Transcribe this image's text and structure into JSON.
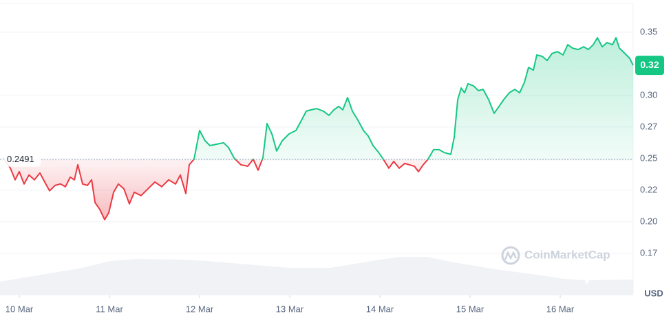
{
  "chart_data": {
    "type": "line",
    "x": [
      -0.176,
      -0.099,
      -0.046,
      0,
      0.053,
      0.107,
      0.168,
      0.229,
      0.282,
      0.336,
      0.397,
      0.458,
      0.511,
      0.565,
      0.611,
      0.649,
      0.702,
      0.756,
      0.802,
      0.84,
      0.893,
      0.947,
      0.992,
      1.046,
      1.099,
      1.16,
      1.221,
      1.275,
      1.351,
      1.427,
      1.504,
      1.58,
      1.656,
      1.733,
      1.786,
      1.847,
      1.885,
      1.939,
      2.0,
      2.061,
      2.115,
      2.191,
      2.267,
      2.321,
      2.382,
      2.458,
      2.534,
      2.595,
      2.649,
      2.702,
      2.748,
      2.802,
      2.855,
      2.916,
      2.992,
      3.069,
      3.13,
      3.183,
      3.237,
      3.298,
      3.374,
      3.435,
      3.489,
      3.542,
      3.588,
      3.641,
      3.695,
      3.756,
      3.817,
      3.87,
      3.924,
      3.985,
      4.038,
      4.099,
      4.153,
      4.214,
      4.275,
      4.328,
      4.382,
      4.427,
      4.481,
      4.534,
      4.595,
      4.656,
      4.71,
      4.786,
      4.824,
      4.863,
      4.901,
      4.939,
      4.977,
      5.038,
      5.092,
      5.145,
      5.206,
      5.267,
      5.321,
      5.374,
      5.435,
      5.496,
      5.55,
      5.603,
      5.649,
      5.702,
      5.74,
      5.802,
      5.855,
      5.908,
      5.969,
      6.031,
      6.084,
      6.137,
      6.198,
      6.26,
      6.313,
      6.366,
      6.412,
      6.466,
      6.519,
      6.58,
      6.618,
      6.656,
      6.718,
      6.771,
      6.809
    ],
    "series": [
      {
        "name": "Price",
        "up_color": "#16c784",
        "down_color": "#ea3943",
        "values": [
          0.2505,
          0.2424,
          0.2332,
          0.2397,
          0.2299,
          0.237,
          0.2332,
          0.2386,
          0.2315,
          0.2245,
          0.2288,
          0.2299,
          0.2277,
          0.2353,
          0.2332,
          0.2451,
          0.2299,
          0.2288,
          0.2332,
          0.2152,
          0.2098,
          0.2017,
          0.2071,
          0.2234,
          0.2299,
          0.2261,
          0.2142,
          0.2234,
          0.2207,
          0.2261,
          0.2315,
          0.2277,
          0.2332,
          0.2299,
          0.237,
          0.2223,
          0.2451,
          0.2495,
          0.2723,
          0.2641,
          0.2603,
          0.2614,
          0.2625,
          0.2587,
          0.2505,
          0.2451,
          0.244,
          0.2495,
          0.2408,
          0.2505,
          0.2777,
          0.2695,
          0.256,
          0.2641,
          0.2695,
          0.2723,
          0.2804,
          0.2875,
          0.2886,
          0.2896,
          0.2875,
          0.2842,
          0.2886,
          0.2913,
          0.2886,
          0.2983,
          0.2875,
          0.2804,
          0.2723,
          0.2679,
          0.2603,
          0.2549,
          0.2495,
          0.2424,
          0.2478,
          0.2424,
          0.2462,
          0.2451,
          0.244,
          0.2397,
          0.2451,
          0.2495,
          0.2571,
          0.2571,
          0.2549,
          0.2533,
          0.2668,
          0.2967,
          0.3059,
          0.3021,
          0.3092,
          0.3076,
          0.3038,
          0.3048,
          0.2967,
          0.2858,
          0.2913,
          0.2967,
          0.3021,
          0.3048,
          0.3021,
          0.3103,
          0.3222,
          0.32,
          0.332,
          0.3309,
          0.3276,
          0.3331,
          0.3347,
          0.332,
          0.3401,
          0.3374,
          0.3363,
          0.3385,
          0.3363,
          0.3401,
          0.3456,
          0.3385,
          0.3418,
          0.3401,
          0.3456,
          0.3374,
          0.3331,
          0.3293,
          0.3238
        ]
      }
    ],
    "baseline": 0.2491,
    "current_price_label": "0.32",
    "xlim": [
      -0.214,
      6.809
    ],
    "xticks": [
      {
        "value": 0,
        "label": "10 Mar"
      },
      {
        "value": 1,
        "label": "11 Mar"
      },
      {
        "value": 2,
        "label": "12 Mar"
      },
      {
        "value": 3,
        "label": "13 Mar"
      },
      {
        "value": 4,
        "label": "14 Mar"
      },
      {
        "value": 5,
        "label": "15 Mar"
      },
      {
        "value": 6,
        "label": "16 Mar"
      }
    ],
    "ylim": [
      0.1418,
      0.3755
    ],
    "yticks": [
      {
        "value": 0.175,
        "label": "0.17"
      },
      {
        "value": 0.2,
        "label": "0.20"
      },
      {
        "value": 0.225,
        "label": "0.22"
      },
      {
        "value": 0.25,
        "label": "0.25"
      },
      {
        "value": 0.275,
        "label": "0.27"
      },
      {
        "value": 0.3,
        "label": "0.30"
      },
      {
        "value": 0.35,
        "label": "0.35"
      }
    ],
    "y_axis_label": "USD",
    "watermark": "CoinMarketCap",
    "grid": true
  }
}
